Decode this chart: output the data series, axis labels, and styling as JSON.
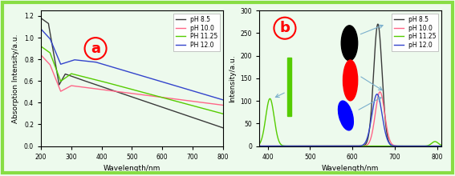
{
  "panel_a": {
    "xlabel": "Wavelength/nm",
    "ylabel": "Absorption Intensity/a.u.",
    "xlim": [
      200,
      800
    ],
    "ylim": [
      0.0,
      1.25
    ],
    "yticks": [
      0.0,
      0.2,
      0.4,
      0.6,
      0.8,
      1.0,
      1.2
    ],
    "xticks": [
      200,
      300,
      400,
      500,
      600,
      700,
      800
    ],
    "legend_labels": [
      "pH 8.5",
      "pH 10.0",
      "PH 11.25",
      "PH 12.0"
    ],
    "line_colors": [
      "#3a3a3a",
      "#ff6688",
      "#55cc00",
      "#3344cc"
    ]
  },
  "panel_b": {
    "xlabel": "Wavelength/nm",
    "ylabel": "Intensity/a.u.",
    "xlim": [
      380,
      810
    ],
    "ylim": [
      0,
      300
    ],
    "yticks": [
      0,
      50,
      100,
      150,
      200,
      250,
      300
    ],
    "xticks": [
      400,
      500,
      600,
      700,
      800
    ],
    "legend_labels": [
      "pH 8.5",
      "pH 10.0",
      "pH 11.25",
      "pH 12.0"
    ],
    "line_colors": [
      "#3a3a3a",
      "#ff6688",
      "#55cc00",
      "#3344cc"
    ]
  },
  "background_color": "#edfaed",
  "border_color": "#88dd44"
}
